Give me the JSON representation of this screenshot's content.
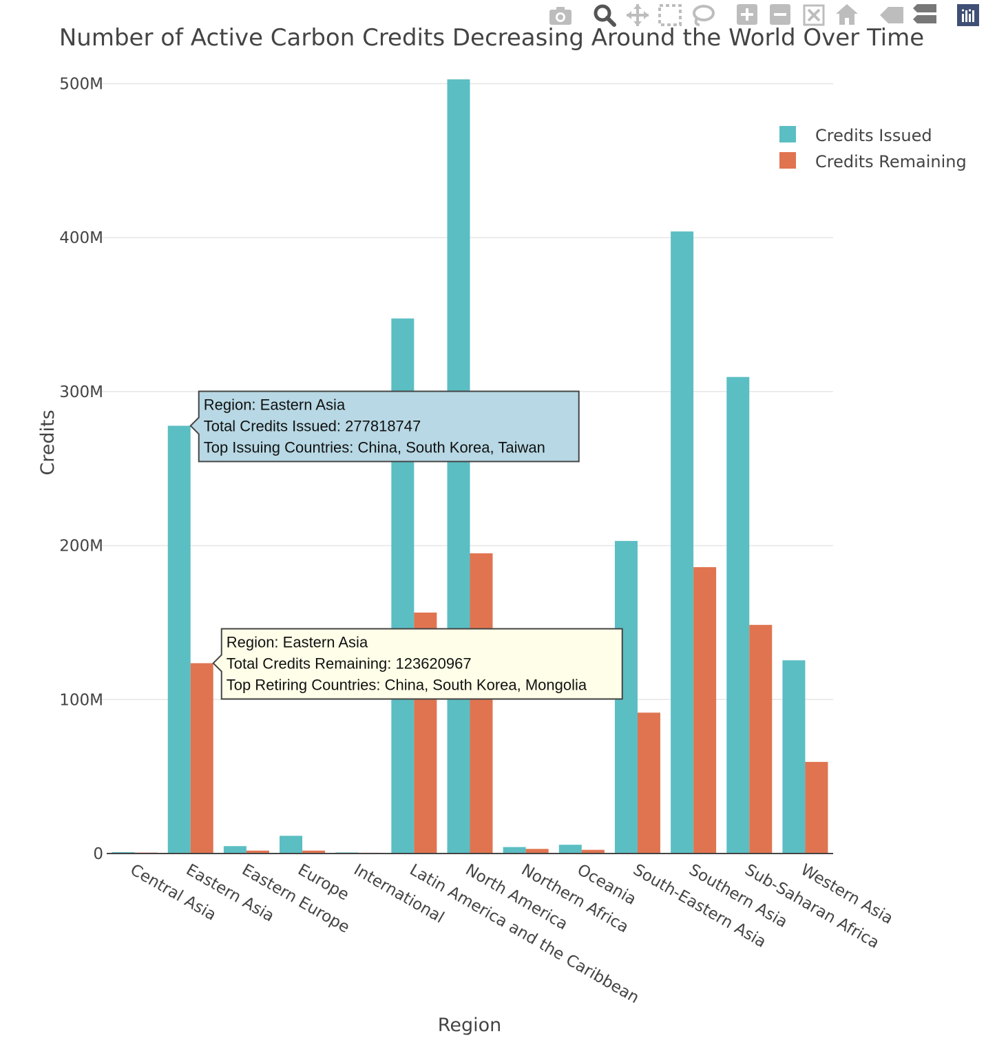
{
  "chart_data": {
    "type": "bar",
    "title": "Number of Active Carbon Credits Decreasing Around the World Over Time",
    "xlabel": "Region",
    "ylabel": "Credits",
    "ylim": [
      0,
      515000000
    ],
    "yticks": [
      0,
      100000000,
      200000000,
      300000000,
      400000000,
      500000000
    ],
    "ytick_labels": [
      "0",
      "100M",
      "200M",
      "300M",
      "400M",
      "500M"
    ],
    "grid": true,
    "legend_position": "top-right",
    "categories": [
      "Central Asia",
      "Eastern Asia",
      "Eastern Europe",
      "Europe",
      "International",
      "Latin America and the Caribbean",
      "North America",
      "Northern Africa",
      "Oceania",
      "South-Eastern Asia",
      "Southern Asia",
      "Sub-Saharan Africa",
      "Western Asia"
    ],
    "series": [
      {
        "name": "Credits Issued",
        "color": "#5bbec3",
        "values": [
          900000,
          277818747,
          4800000,
          11500000,
          700000,
          347500000,
          502800000,
          4200000,
          5700000,
          203000000,
          404000000,
          309500000,
          125500000
        ]
      },
      {
        "name": "Credits Remaining",
        "color": "#e07450",
        "values": [
          600000,
          123620967,
          1900000,
          1900000,
          500000,
          156500000,
          195000000,
          3000000,
          2400000,
          91500000,
          186000000,
          148500000,
          59500000
        ]
      }
    ],
    "hover_issued": {
      "lines": [
        "Region: Eastern Asia",
        "Total Credits Issued: 277818747",
        "Top Issuing Countries: China, South Korea, Taiwan"
      ],
      "background": "#b7d8e4"
    },
    "hover_remaining": {
      "lines": [
        "Region: Eastern Asia",
        "Total Credits Remaining: 123620967",
        "Top Retiring Countries: China, South Korea, Mongolia"
      ],
      "background": "#fffee8"
    }
  },
  "modebar": {
    "icons": [
      "camera-icon",
      "zoom-icon",
      "pan-icon",
      "box-select-icon",
      "lasso-icon",
      "zoom-in-icon",
      "zoom-out-icon",
      "autoscale-icon",
      "reset-axes-icon",
      "hover-closest-icon",
      "hover-compare-icon",
      "plotly-logo-icon"
    ]
  }
}
